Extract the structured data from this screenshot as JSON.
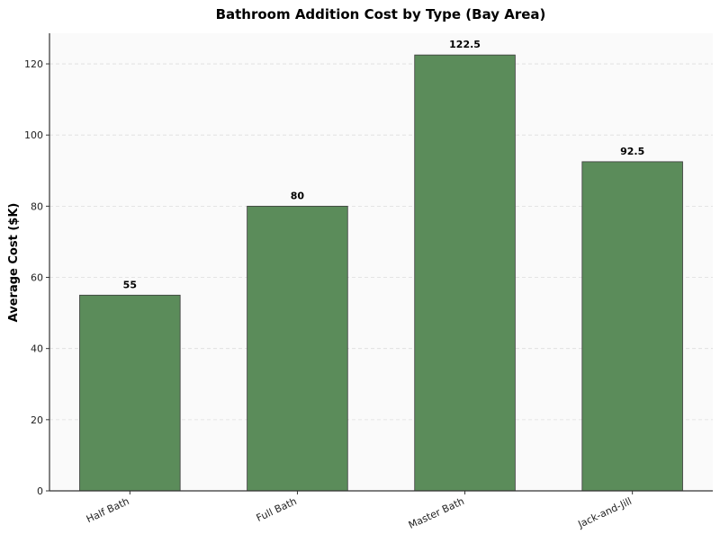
{
  "chart_data": {
    "type": "bar",
    "title": "Bathroom Addition Cost by Type (Bay Area)",
    "xlabel": "",
    "ylabel": "Average Cost ($K)",
    "categories": [
      "Half Bath",
      "Full Bath",
      "Master Bath",
      "Jack-and-Jill"
    ],
    "values": [
      55,
      80,
      122.5,
      92.5
    ],
    "data_labels": [
      "55",
      "80",
      "122.5",
      "92.5"
    ],
    "ylim": [
      0,
      128.6
    ],
    "yticks": [
      0,
      20,
      40,
      60,
      80,
      100,
      120
    ],
    "grid": "y dashed",
    "colors": {
      "bar": "#5b8c5a",
      "bar_edge": "#3a3a3a",
      "plot_bg": "#fafafa",
      "grid": "#dddddd"
    }
  }
}
